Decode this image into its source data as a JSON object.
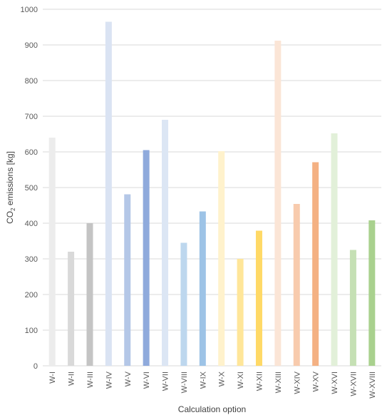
{
  "chart_data": {
    "type": "bar",
    "title": "",
    "xlabel": "Calculation option",
    "ylabel_main": "CO",
    "ylabel_sub": "2",
    "ylabel_rest": " emissions [kg]",
    "ylim": [
      0,
      1000
    ],
    "yticks": [
      0,
      100,
      200,
      300,
      400,
      500,
      600,
      700,
      800,
      900,
      1000
    ],
    "ytick_labels": [
      "0",
      "100",
      "200",
      "300",
      "400",
      "500",
      "600",
      "700",
      "800",
      "900",
      "1000"
    ],
    "grid": true,
    "categories": [
      "W-I",
      "W-II",
      "W-III",
      "W-IV",
      "W-V",
      "W-VI",
      "W-VII",
      "W-VIII",
      "W-IX",
      "W-X",
      "W-XI",
      "W-XII",
      "W-XIII",
      "W-XIV",
      "W-XV",
      "W-XVI",
      "W-XVII",
      "W-XVIII"
    ],
    "values": [
      640,
      320,
      400,
      965,
      481,
      605,
      690,
      345,
      433,
      602,
      300,
      379,
      912,
      454,
      571,
      652,
      325,
      408
    ],
    "colors": [
      "#ececec",
      "#d9d9d9",
      "#c4c4c4",
      "#dae3f3",
      "#b4c7e7",
      "#8faadc",
      "#dce6f4",
      "#bdd7ee",
      "#9dc3e6",
      "#fff2cc",
      "#ffe699",
      "#ffd966",
      "#fbe5d6",
      "#f8cbad",
      "#f4b183",
      "#e2f0d9",
      "#c5e0b4",
      "#a9d18e"
    ]
  }
}
